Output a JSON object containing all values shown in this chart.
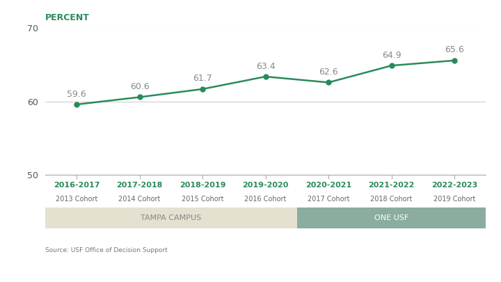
{
  "x_labels_line1": [
    "2016-2017",
    "2017-2018",
    "2018-2019",
    "2019-2020",
    "2020-2021",
    "2021-2022",
    "2022-2023"
  ],
  "x_labels_line2": [
    "2013 Cohort",
    "2014 Cohort",
    "2015 Cohort",
    "2016 Cohort",
    "2017 Cohort",
    "2018 Cohort",
    "2019 Cohort"
  ],
  "values": [
    59.6,
    60.6,
    61.7,
    63.4,
    62.6,
    64.9,
    65.6
  ],
  "line_color": "#2a8a5a",
  "marker_color": "#2a8a5a",
  "ylim": [
    50,
    70
  ],
  "yticks": [
    50,
    60,
    70
  ],
  "ylabel": "PERCENT",
  "grid_color": "#cccccc",
  "bg_color": "#ffffff",
  "data_label_color": "#888888",
  "tampa_label": "TAMPA CAMPUS",
  "one_usf_label": "ONE USF",
  "tampa_bg": "#e5e1d0",
  "one_usf_bg": "#8aada0",
  "one_usf_text": "#ffffff",
  "tampa_text": "#888888",
  "source_text": "Source: USF Office of Decision Support",
  "label_fontsize": 8,
  "cohort_fontsize": 7,
  "ylabel_fontsize": 9,
  "data_label_fontsize": 9
}
